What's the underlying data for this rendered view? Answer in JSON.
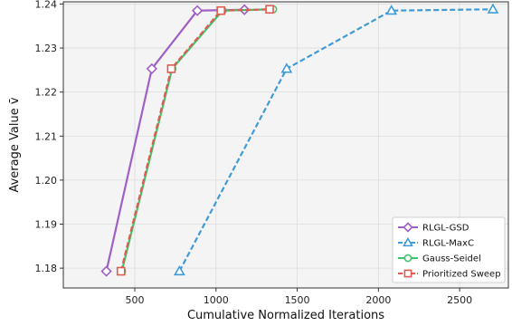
{
  "chart_data": {
    "type": "line",
    "xlabel": "Cumulative Normalized Iterations",
    "ylabel": "Average Value v̄",
    "xlim": [
      60,
      2800
    ],
    "ylim": [
      1.1755,
      1.2405
    ],
    "xticks": [
      500,
      1000,
      1500,
      2000,
      2500
    ],
    "yticks": [
      1.18,
      1.19,
      1.2,
      1.21,
      1.22,
      1.23,
      1.24
    ],
    "ytick_labels": [
      "1.18",
      "1.19",
      "1.20",
      "1.21",
      "1.22",
      "1.23",
      "1.24"
    ],
    "grid": true,
    "background": "#f4f4f4",
    "legend_position": "bottom-right",
    "series": [
      {
        "name": "RLGL-GSD",
        "color": "#a05fc4",
        "marker": "diamond",
        "dash": "solid",
        "points": [
          [
            325,
            1.1793
          ],
          [
            605,
            1.2253
          ],
          [
            885,
            1.2385
          ],
          [
            1175,
            1.2387
          ]
        ]
      },
      {
        "name": "RLGL-MaxC",
        "color": "#3f9bd6",
        "marker": "triangle",
        "dash": "dashed",
        "points": [
          [
            775,
            1.1793
          ],
          [
            1435,
            1.2253
          ],
          [
            2080,
            1.2385
          ],
          [
            2705,
            1.2388
          ]
        ]
      },
      {
        "name": "Gauss-Seidel",
        "color": "#3fc56e",
        "marker": "circle",
        "dash": "solid",
        "points": [
          [
            420,
            1.1793
          ],
          [
            730,
            1.2253
          ],
          [
            1040,
            1.2385
          ],
          [
            1350,
            1.2388
          ]
        ]
      },
      {
        "name": "Prioritized Sweep",
        "color": "#e05a4f",
        "marker": "square",
        "dash": "dashed",
        "points": [
          [
            415,
            1.1793
          ],
          [
            725,
            1.2253
          ],
          [
            1030,
            1.2385
          ],
          [
            1330,
            1.2388
          ]
        ]
      }
    ]
  }
}
